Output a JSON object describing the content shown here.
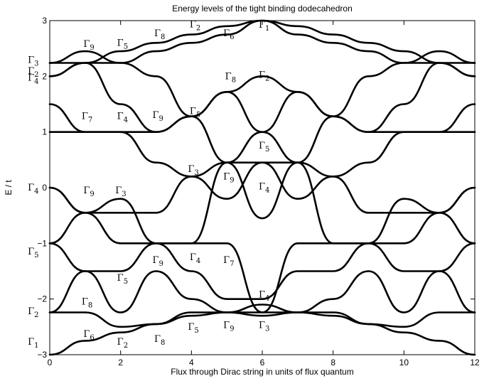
{
  "chart_data": {
    "type": "line",
    "title": "Energy levels of the tight binding dodecahedron",
    "xlabel": "Flux through Dirac string in units of flux quantum",
    "ylabel": "E / t",
    "xlim": [
      0,
      12
    ],
    "ylim": [
      -3,
      3
    ],
    "x_ticks": [
      "0",
      "2",
      "4",
      "6",
      "8",
      "10",
      "12"
    ],
    "y_ticks": [
      "3",
      "2",
      "1",
      "0",
      "−1",
      "−2",
      "−3"
    ],
    "grid": false,
    "legend": "none",
    "series_color": "#000000",
    "series": [
      {
        "x": [
          0,
          1,
          2,
          3,
          4,
          5,
          6,
          7,
          8,
          9,
          10,
          11,
          12
        ],
        "y": [
          2.24,
          2.24,
          2.45,
          2.6,
          2.75,
          2.9,
          3.0,
          2.9,
          2.75,
          2.6,
          2.45,
          2.24,
          2.24
        ]
      },
      {
        "x": [
          0,
          1,
          2,
          3,
          4,
          5,
          6,
          7,
          8,
          9,
          10,
          11,
          12
        ],
        "y": [
          2.24,
          2.45,
          2.24,
          2.45,
          2.6,
          2.75,
          3.0,
          2.75,
          2.6,
          2.45,
          2.24,
          2.45,
          2.24
        ]
      },
      {
        "x": [
          0,
          1,
          2,
          3,
          4,
          5,
          6,
          7,
          8,
          9,
          10,
          11,
          12
        ],
        "y": [
          2.0,
          2.24,
          2.24,
          2.0,
          1.28,
          1.72,
          2.0,
          1.72,
          1.28,
          2.0,
          2.24,
          2.24,
          2.0
        ]
      },
      {
        "x": [
          0,
          1,
          2,
          3,
          4,
          5,
          6,
          7,
          8,
          9,
          10,
          11,
          12
        ],
        "y": [
          2.0,
          2.24,
          1.5,
          1.0,
          1.28,
          1.72,
          1.0,
          1.72,
          1.28,
          1.0,
          1.5,
          2.24,
          2.0
        ]
      },
      {
        "x": [
          0,
          1,
          2,
          3,
          4,
          5,
          6,
          7,
          8,
          9,
          10,
          11,
          12
        ],
        "y": [
          1.5,
          1.0,
          1.0,
          1.0,
          1.28,
          0.45,
          0.45,
          0.45,
          1.28,
          1.0,
          1.0,
          1.0,
          1.5
        ]
      },
      {
        "x": [
          0,
          1,
          2,
          3,
          4,
          5,
          6,
          7,
          8,
          9,
          10,
          11,
          12
        ],
        "y": [
          1.0,
          1.0,
          1.0,
          0.45,
          0.2,
          0.45,
          1.0,
          0.45,
          0.2,
          0.45,
          1.0,
          1.0,
          1.0
        ]
      },
      {
        "x": [
          0,
          1,
          2,
          3,
          4,
          5,
          6,
          7,
          8,
          9,
          10,
          11,
          12
        ],
        "y": [
          0.0,
          -0.45,
          -0.2,
          -1.0,
          -1.0,
          0.45,
          -0.55,
          0.45,
          -1.0,
          -1.0,
          -0.2,
          -0.45,
          0.0
        ]
      },
      {
        "x": [
          0,
          1,
          2,
          3,
          4,
          5,
          6,
          7,
          8,
          9,
          10,
          11,
          12
        ],
        "y": [
          0.0,
          -0.45,
          -0.45,
          -0.45,
          0.2,
          -0.2,
          0.45,
          -0.2,
          0.2,
          -0.45,
          -0.45,
          -0.45,
          0.0
        ]
      },
      {
        "x": [
          0,
          1,
          2,
          3,
          4,
          5,
          6,
          7,
          8,
          9,
          10,
          11,
          12
        ],
        "y": [
          -1.0,
          -0.45,
          -1.0,
          -1.0,
          -1.5,
          -2.0,
          -2.0,
          -1.5,
          -1.5,
          -1.0,
          -1.0,
          -0.45,
          -1.0
        ]
      },
      {
        "x": [
          0,
          1,
          2,
          3,
          4,
          5,
          6,
          7,
          8,
          9,
          10,
          11,
          12
        ],
        "y": [
          -1.0,
          -1.5,
          -1.5,
          -1.0,
          -1.0,
          -1.0,
          -2.24,
          -1.0,
          -1.0,
          -1.0,
          -1.5,
          -1.5,
          -1.0
        ]
      },
      {
        "x": [
          0,
          1,
          2,
          3,
          4,
          5,
          6,
          7,
          8,
          9,
          10,
          11,
          12
        ],
        "y": [
          -2.24,
          -1.5,
          -2.24,
          -1.5,
          -2.0,
          -2.24,
          -2.1,
          -2.24,
          -2.0,
          -1.5,
          -2.24,
          -1.5,
          -2.24
        ]
      },
      {
        "x": [
          0,
          1,
          2,
          3,
          4,
          5,
          6,
          7,
          8,
          9,
          10,
          11,
          12
        ],
        "y": [
          -2.24,
          -2.24,
          -2.5,
          -2.45,
          -2.24,
          -2.24,
          -2.3,
          -2.24,
          -2.24,
          -2.45,
          -2.5,
          -2.24,
          -2.24
        ]
      },
      {
        "x": [
          0,
          1,
          2,
          3,
          4,
          5,
          6,
          7,
          8,
          9,
          10,
          11,
          12
        ],
        "y": [
          -3.0,
          -2.75,
          -2.6,
          -2.45,
          -2.3,
          -2.24,
          -2.24,
          -2.24,
          -2.3,
          -2.45,
          -2.6,
          -2.75,
          -3.0
        ]
      }
    ],
    "annotations": [
      {
        "symbol": "Γ",
        "sub": "3",
        "x": -0.62,
        "y": 2.24
      },
      {
        "symbol": "Γ",
        "sub": "2",
        "x": -0.62,
        "y": 2.04
      },
      {
        "symbol": "Γ",
        "sub": "4",
        "x": -0.62,
        "y": 1.92
      },
      {
        "symbol": "Γ",
        "sub": "9",
        "x": 0.95,
        "y": 2.53
      },
      {
        "symbol": "Γ",
        "sub": "5",
        "x": 1.9,
        "y": 2.55
      },
      {
        "symbol": "Γ",
        "sub": "8",
        "x": 2.95,
        "y": 2.72
      },
      {
        "symbol": "Γ",
        "sub": "2",
        "x": 3.95,
        "y": 2.88
      },
      {
        "symbol": "Γ",
        "sub": "6",
        "x": 4.9,
        "y": 2.72
      },
      {
        "symbol": "Γ",
        "sub": "1",
        "x": 5.9,
        "y": 2.87
      },
      {
        "symbol": "Γ",
        "sub": "8",
        "x": 4.95,
        "y": 1.95
      },
      {
        "symbol": "Γ",
        "sub": "2",
        "x": 5.9,
        "y": 1.97
      },
      {
        "symbol": "Γ",
        "sub": "5",
        "x": 3.95,
        "y": 1.32
      },
      {
        "symbol": "Γ",
        "sub": "7",
        "x": 0.9,
        "y": 1.23
      },
      {
        "symbol": "Γ",
        "sub": "4",
        "x": 1.9,
        "y": 1.23
      },
      {
        "symbol": "Γ",
        "sub": "9",
        "x": 2.9,
        "y": 1.25
      },
      {
        "symbol": "Γ",
        "sub": "5",
        "x": 5.9,
        "y": 0.7
      },
      {
        "symbol": "Γ",
        "sub": "3",
        "x": 3.9,
        "y": 0.28
      },
      {
        "symbol": "Γ",
        "sub": "9",
        "x": 4.9,
        "y": 0.15
      },
      {
        "symbol": "Γ",
        "sub": "4",
        "x": 5.9,
        "y": -0.03
      },
      {
        "symbol": "Γ",
        "sub": "4",
        "x": -0.62,
        "y": -0.05
      },
      {
        "symbol": "Γ",
        "sub": "9",
        "x": 0.95,
        "y": -0.1
      },
      {
        "symbol": "Γ",
        "sub": "3",
        "x": 1.85,
        "y": -0.1
      },
      {
        "symbol": "Γ",
        "sub": "5",
        "x": -0.62,
        "y": -1.2
      },
      {
        "symbol": "Γ",
        "sub": "9",
        "x": 2.9,
        "y": -1.35
      },
      {
        "symbol": "Γ",
        "sub": "4",
        "x": 3.95,
        "y": -1.3
      },
      {
        "symbol": "Γ",
        "sub": "7",
        "x": 4.9,
        "y": -1.35
      },
      {
        "symbol": "Γ",
        "sub": "5",
        "x": 1.9,
        "y": -1.67
      },
      {
        "symbol": "Γ",
        "sub": "8",
        "x": 0.9,
        "y": -2.1
      },
      {
        "symbol": "Γ",
        "sub": "4",
        "x": 5.9,
        "y": -1.97
      },
      {
        "symbol": "Γ",
        "sub": "2",
        "x": -0.62,
        "y": -2.27
      },
      {
        "symbol": "Γ",
        "sub": "6",
        "x": 0.95,
        "y": -2.68
      },
      {
        "symbol": "Γ",
        "sub": "2",
        "x": 1.9,
        "y": -2.82
      },
      {
        "symbol": "Γ",
        "sub": "8",
        "x": 2.95,
        "y": -2.77
      },
      {
        "symbol": "Γ",
        "sub": "5",
        "x": 3.9,
        "y": -2.55
      },
      {
        "symbol": "Γ",
        "sub": "9",
        "x": 4.9,
        "y": -2.52
      },
      {
        "symbol": "Γ",
        "sub": "3",
        "x": 5.9,
        "y": -2.52
      },
      {
        "symbol": "Γ",
        "sub": "1",
        "x": -0.62,
        "y": -2.82
      }
    ]
  }
}
